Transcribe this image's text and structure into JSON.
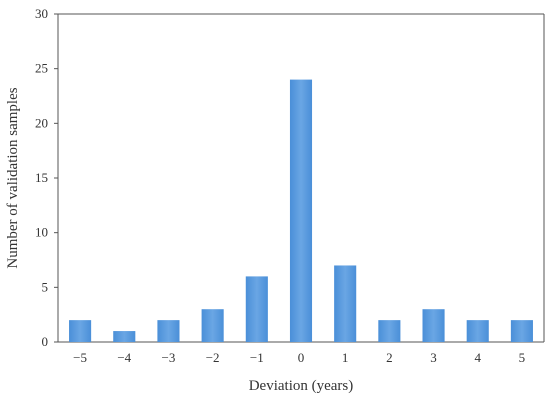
{
  "chart_data": {
    "type": "bar",
    "title": "",
    "xlabel": "Deviation (years)",
    "ylabel": "Number of validation samples",
    "categories": [
      "−5",
      "−4",
      "−3",
      "−2",
      "−1",
      "0",
      "1",
      "2",
      "3",
      "4",
      "5"
    ],
    "values": [
      2,
      1,
      2,
      3,
      6,
      24,
      7,
      2,
      3,
      2,
      2
    ],
    "ylim": [
      0,
      30
    ],
    "yticks": [
      "0",
      "5",
      "10",
      "15",
      "20",
      "25",
      "30"
    ],
    "grid": false,
    "legend": "none",
    "bar_color": "#4a8fd8",
    "bar_color_light": "#6aa6e4"
  }
}
